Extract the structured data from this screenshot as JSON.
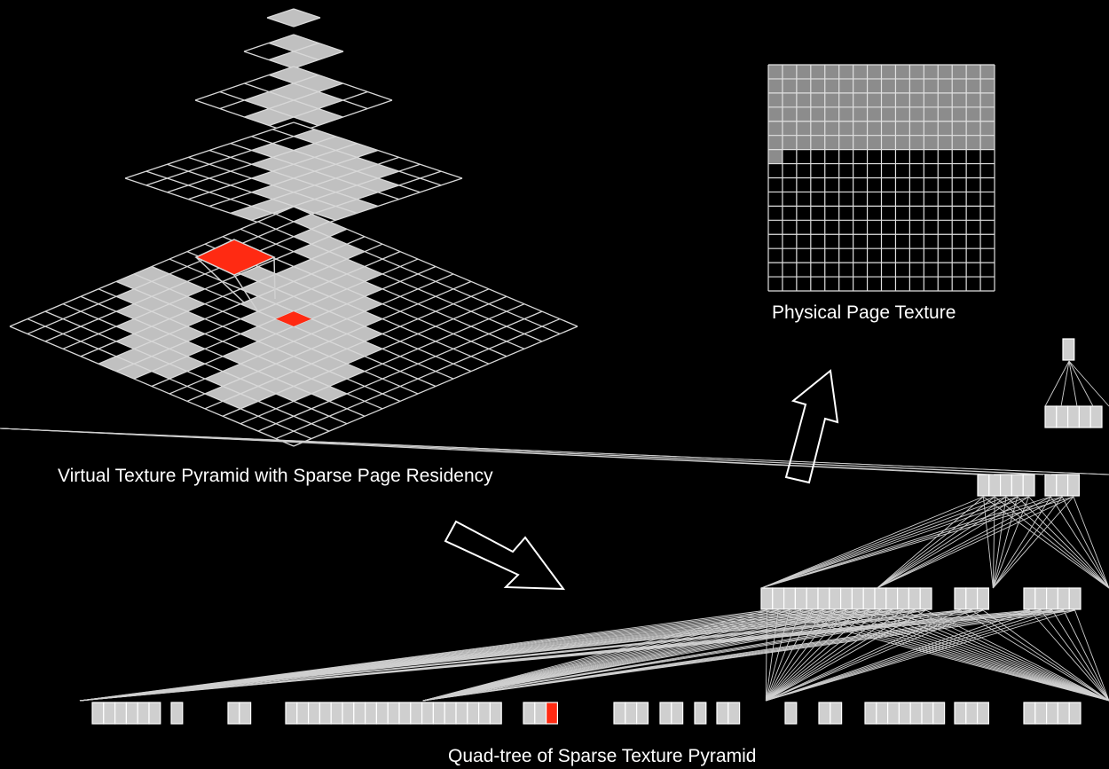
{
  "labels": {
    "pyramid": "Virtual Texture Pyramid with Sparse Page Residency",
    "physical": "Physical Page Texture",
    "quadtree": "Quad-tree of Sparse Texture Pyramid"
  },
  "colors": {
    "background": "#000000",
    "resident_page": "#c0c0c0",
    "grid_line": "#d8d8d8",
    "highlight": "#ff2a12",
    "node_fill": "#cfcfcf",
    "node_stroke": "#ffffff"
  },
  "pyramid_levels": [
    {
      "size": 1,
      "resident": [
        [
          0,
          0
        ]
      ]
    },
    {
      "size": 2,
      "resident": [
        [
          0,
          0
        ],
        [
          1,
          0
        ],
        [
          1,
          1
        ]
      ]
    },
    {
      "size": 4,
      "resident": [
        [
          0,
          0
        ],
        [
          1,
          0
        ],
        [
          1,
          1
        ],
        [
          2,
          1
        ],
        [
          2,
          2
        ],
        [
          1,
          2
        ],
        [
          3,
          2
        ],
        [
          2,
          3
        ]
      ]
    },
    {
      "size": 8,
      "resident": [
        [
          1,
          0
        ],
        [
          2,
          0
        ],
        [
          3,
          0
        ],
        [
          2,
          1
        ],
        [
          3,
          1
        ],
        [
          4,
          1
        ],
        [
          5,
          1
        ],
        [
          1,
          2
        ],
        [
          2,
          2
        ],
        [
          3,
          2
        ],
        [
          4,
          2
        ],
        [
          5,
          2
        ],
        [
          6,
          2
        ],
        [
          2,
          3
        ],
        [
          3,
          3
        ],
        [
          4,
          3
        ],
        [
          5,
          3
        ],
        [
          6,
          3
        ],
        [
          3,
          4
        ],
        [
          4,
          4
        ],
        [
          5,
          4
        ],
        [
          6,
          4
        ],
        [
          7,
          4
        ],
        [
          4,
          5
        ],
        [
          5,
          5
        ],
        [
          6,
          5
        ],
        [
          7,
          5
        ],
        [
          5,
          6
        ],
        [
          6,
          6
        ],
        [
          5,
          7
        ]
      ]
    },
    {
      "size": 16,
      "resident": [
        [
          0,
          8
        ],
        [
          1,
          8
        ],
        [
          2,
          8
        ],
        [
          0,
          9
        ],
        [
          1,
          9
        ],
        [
          2,
          9
        ],
        [
          3,
          9
        ],
        [
          1,
          10
        ],
        [
          2,
          10
        ],
        [
          3,
          10
        ],
        [
          4,
          10
        ],
        [
          2,
          11
        ],
        [
          3,
          11
        ],
        [
          4,
          11
        ],
        [
          5,
          11
        ],
        [
          3,
          12
        ],
        [
          4,
          12
        ],
        [
          5,
          12
        ],
        [
          6,
          12
        ],
        [
          4,
          13
        ],
        [
          5,
          13
        ],
        [
          6,
          13
        ],
        [
          7,
          13
        ],
        [
          5,
          14
        ],
        [
          6,
          14
        ],
        [
          7,
          14
        ],
        [
          5,
          15
        ],
        [
          6,
          15
        ],
        [
          2,
          1
        ],
        [
          3,
          1
        ],
        [
          4,
          1
        ],
        [
          3,
          2
        ],
        [
          4,
          2
        ],
        [
          5,
          2
        ],
        [
          6,
          2
        ],
        [
          4,
          3
        ],
        [
          5,
          3
        ],
        [
          6,
          3
        ],
        [
          7,
          3
        ],
        [
          4,
          4
        ],
        [
          5,
          4
        ],
        [
          6,
          4
        ],
        [
          7,
          4
        ],
        [
          8,
          4
        ],
        [
          5,
          5
        ],
        [
          6,
          5
        ],
        [
          7,
          5
        ],
        [
          8,
          5
        ],
        [
          9,
          5
        ],
        [
          6,
          6
        ],
        [
          7,
          6
        ],
        [
          8,
          6
        ],
        [
          9,
          6
        ],
        [
          10,
          6
        ],
        [
          6,
          7
        ],
        [
          7,
          7
        ],
        [
          8,
          7
        ],
        [
          9,
          7
        ],
        [
          10,
          7
        ],
        [
          11,
          7
        ],
        [
          7,
          8
        ],
        [
          8,
          8
        ],
        [
          9,
          8
        ],
        [
          10,
          8
        ],
        [
          11,
          8
        ],
        [
          7,
          9
        ],
        [
          8,
          9
        ],
        [
          9,
          9
        ],
        [
          10,
          9
        ],
        [
          11,
          9
        ],
        [
          12,
          9
        ],
        [
          8,
          10
        ],
        [
          9,
          10
        ],
        [
          10,
          10
        ],
        [
          11,
          10
        ],
        [
          12,
          10
        ],
        [
          8,
          11
        ],
        [
          9,
          11
        ],
        [
          10,
          11
        ],
        [
          11,
          11
        ],
        [
          12,
          11
        ],
        [
          13,
          11
        ],
        [
          9,
          12
        ],
        [
          10,
          12
        ],
        [
          11,
          12
        ],
        [
          12,
          12
        ],
        [
          9,
          13
        ],
        [
          10,
          13
        ],
        [
          11,
          13
        ],
        [
          10,
          14
        ],
        [
          11,
          14
        ],
        [
          3,
          5
        ],
        [
          4,
          5
        ],
        [
          4,
          6
        ],
        [
          5,
          6
        ],
        [
          5,
          7
        ],
        [
          6,
          8
        ],
        [
          2,
          0
        ],
        [
          1,
          0
        ]
      ],
      "highlight": [
        7,
        7
      ]
    }
  ],
  "physical_page_texture": {
    "cols": 16,
    "rows": 16,
    "filled_rows": 6,
    "extra_filled": 1
  },
  "quadtree": {
    "root": 1,
    "level1": [
      5
    ],
    "level2": [
      5,
      3
    ],
    "level3": [
      15,
      3,
      5
    ],
    "leaf_groups": [
      6,
      1,
      2,
      19,
      3,
      3,
      2,
      1,
      2,
      1,
      2,
      7,
      3,
      5
    ],
    "highlight_leaf": [
      4,
      2
    ]
  }
}
